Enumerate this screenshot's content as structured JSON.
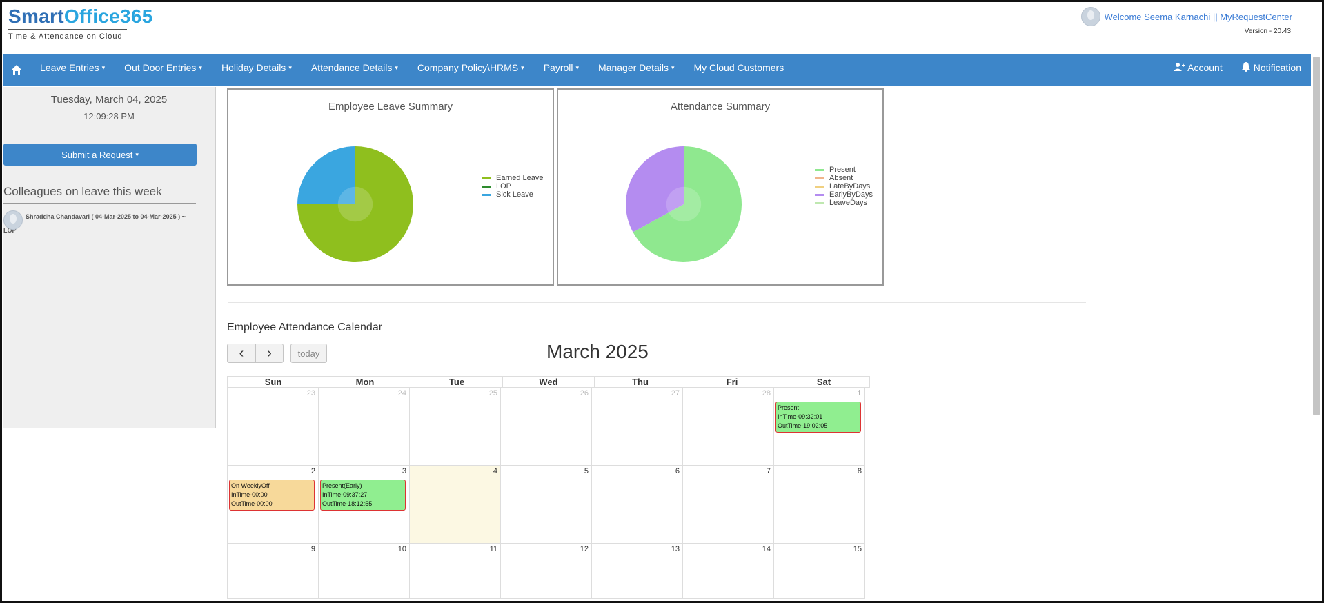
{
  "header": {
    "logo_smart": "Smart",
    "logo_office": "Office365",
    "logo_tagline": "Time & Attendance on Cloud",
    "welcome": "Welcome Seema Karnachi || MyRequestCenter",
    "version": "Version - 20.43"
  },
  "nav": {
    "items": [
      {
        "label": "Leave Entries",
        "caret": "▾"
      },
      {
        "label": "Out Door Entries",
        "caret": "▾"
      },
      {
        "label": "Holiday Details",
        "caret": "▾"
      },
      {
        "label": "Attendance Details",
        "caret": "▾"
      },
      {
        "label": "Company Policy\\HRMS",
        "caret": "▾"
      },
      {
        "label": "Payroll",
        "caret": "▾"
      },
      {
        "label": "Manager Details",
        "caret": "▾"
      },
      {
        "label": "My Cloud Customers",
        "caret": ""
      }
    ],
    "account": "Account",
    "notification": "Notification"
  },
  "sidebar": {
    "date": "Tuesday, March 04, 2025",
    "time": "12:09:28 PM",
    "request_button": "Submit a Request",
    "colleagues_title": "Colleagues on leave this week",
    "colleague_entry": "Shraddha Chandavari ( 04-Mar-2025 to 04-Mar-2025 ) ~",
    "colleague_entry_cont": "LOP"
  },
  "charts": {
    "leave": {
      "title": "Employee Leave Summary",
      "legend": [
        {
          "label": "Earned Leave",
          "color": "#8fbf1e"
        },
        {
          "label": "LOP",
          "color": "#2e8b2e"
        },
        {
          "label": "Sick Leave",
          "color": "#3aa6e0"
        }
      ]
    },
    "attendance": {
      "title": "Attendance Summary",
      "legend": [
        {
          "label": "Present",
          "color": "#8fe88f"
        },
        {
          "label": "Absent",
          "color": "#f0b48a"
        },
        {
          "label": "LateByDays",
          "color": "#f0d080"
        },
        {
          "label": "EarlyByDays",
          "color": "#b48cf0"
        },
        {
          "label": "LeaveDays",
          "color": "#bfe8b0"
        }
      ]
    }
  },
  "chart_data": [
    {
      "type": "pie",
      "title": "Employee Leave Summary",
      "labels": [
        "Earned Leave",
        "LOP",
        "Sick Leave"
      ],
      "values": [
        75,
        0,
        25
      ]
    },
    {
      "type": "pie",
      "title": "Attendance Summary",
      "labels": [
        "Present",
        "Absent",
        "LateByDays",
        "EarlyByDays",
        "LeaveDays"
      ],
      "values": [
        67,
        0,
        0,
        33,
        0
      ]
    }
  ],
  "calendar": {
    "label": "Employee Attendance Calendar",
    "title": "March 2025",
    "prev": "‹",
    "next": "›",
    "today": "today",
    "days": [
      "Sun",
      "Mon",
      "Tue",
      "Wed",
      "Thu",
      "Fri",
      "Sat"
    ],
    "rows": [
      [
        "23",
        "24",
        "25",
        "26",
        "27",
        "28",
        "1"
      ],
      [
        "2",
        "3",
        "4",
        "5",
        "6",
        "7",
        "8"
      ],
      [
        "9",
        "10",
        "11",
        "12",
        "13",
        "14",
        "15"
      ]
    ],
    "events": {
      "sat1": [
        "Present",
        "InTime-09:32:01",
        "OutTime-19:02:05"
      ],
      "sun2": [
        "On WeeklyOff",
        "InTime-00:00",
        "OutTime-00:00"
      ],
      "mon3": [
        "Present(Early)",
        "InTime-09:37:27",
        "OutTime-18:12:55"
      ]
    }
  }
}
